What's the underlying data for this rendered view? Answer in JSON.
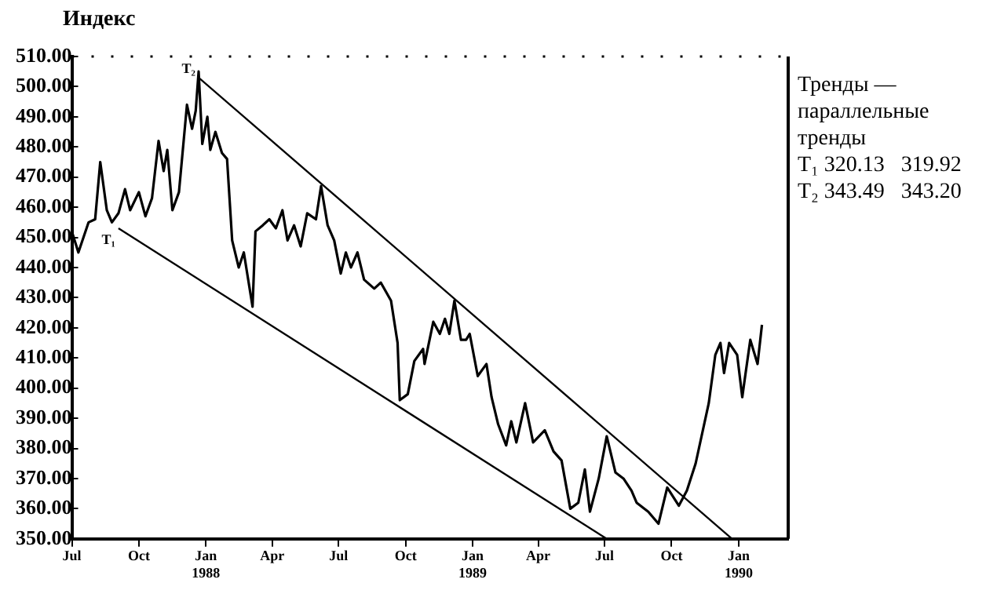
{
  "chart_data": {
    "type": "line",
    "ylabel": "Индекс",
    "xlim": [
      "1987-07-01",
      "1990-03-10"
    ],
    "xticks": [
      {
        "value": "1987-07-01",
        "label": "Jul"
      },
      {
        "value": "1987-10-01",
        "label": "Oct"
      },
      {
        "value": "1988-01-01",
        "label": "Jan\n1988"
      },
      {
        "value": "1988-04-01",
        "label": "Apr"
      },
      {
        "value": "1988-07-01",
        "label": "Jul"
      },
      {
        "value": "1988-10-01",
        "label": "Oct"
      },
      {
        "value": "1989-01-01",
        "label": "Jan\n1989"
      },
      {
        "value": "1989-04-01",
        "label": "Apr"
      },
      {
        "value": "1989-07-01",
        "label": "Jul"
      },
      {
        "value": "1989-10-01",
        "label": "Oct"
      },
      {
        "value": "1990-01-01",
        "label": "Jan\n1990"
      }
    ],
    "ylim": [
      350,
      510
    ],
    "yticks": [
      {
        "value": 350,
        "label": "350.00"
      },
      {
        "value": 360,
        "label": "360.00"
      },
      {
        "value": 370,
        "label": "370.00"
      },
      {
        "value": 380,
        "label": "380.00"
      },
      {
        "value": 390,
        "label": "390.00"
      },
      {
        "value": 400,
        "label": "400.00"
      },
      {
        "value": 410,
        "label": "410.00"
      },
      {
        "value": 420,
        "label": "420.00"
      },
      {
        "value": 430,
        "label": "430.00"
      },
      {
        "value": 440,
        "label": "440.00"
      },
      {
        "value": 450,
        "label": "450.00"
      },
      {
        "value": 460,
        "label": "460.00"
      },
      {
        "value": 470,
        "label": "470.00"
      },
      {
        "value": 480,
        "label": "480.00"
      },
      {
        "value": 490,
        "label": "490.00"
      },
      {
        "value": 500,
        "label": "500.00"
      },
      {
        "value": 510,
        "label": "510.00"
      }
    ],
    "grid": false,
    "legend": false,
    "marker": "none",
    "line_style": "solid",
    "series": [
      {
        "color": "#000000",
        "x": [
          "1987-07-01",
          "1987-07-10",
          "1987-07-24",
          "1987-08-02",
          "1987-08-09",
          "1987-08-18",
          "1987-08-25",
          "1987-09-03",
          "1987-09-12",
          "1987-09-19",
          "1987-10-01",
          "1987-10-10",
          "1987-10-19",
          "1987-10-28",
          "1987-11-04",
          "1987-11-09",
          "1987-11-16",
          "1987-11-25",
          "1987-12-06",
          "1987-12-13",
          "1987-12-18",
          "1987-12-22",
          "1987-12-27",
          "1988-01-03",
          "1988-01-07",
          "1988-01-14",
          "1988-01-23",
          "1988-01-30",
          "1988-02-06",
          "1988-02-15",
          "1988-02-22",
          "1988-03-05",
          "1988-03-09",
          "1988-03-19",
          "1988-03-28",
          "1988-04-06",
          "1988-04-15",
          "1988-04-22",
          "1988-05-01",
          "1988-05-10",
          "1988-05-19",
          "1988-05-31",
          "1988-06-07",
          "1988-06-16",
          "1988-06-25",
          "1988-07-04",
          "1988-07-11",
          "1988-07-18",
          "1988-07-27",
          "1988-08-05",
          "1988-08-19",
          "1988-08-28",
          "1988-09-11",
          "1988-09-20",
          "1988-09-23",
          "1988-10-04",
          "1988-10-13",
          "1988-10-25",
          "1988-10-27",
          "1988-11-08",
          "1988-11-17",
          "1988-11-24",
          "1988-11-30",
          "1988-12-07",
          "1988-12-16",
          "1988-12-23",
          "1988-12-28",
          "1989-01-08",
          "1989-01-20",
          "1989-01-27",
          "1989-02-05",
          "1989-02-16",
          "1989-02-23",
          "1989-03-02",
          "1989-03-14",
          "1989-03-25",
          "1989-04-10",
          "1989-04-22",
          "1989-05-03",
          "1989-05-15",
          "1989-05-26",
          "1989-06-04",
          "1989-06-11",
          "1989-06-23",
          "1989-07-04",
          "1989-07-16",
          "1989-07-27",
          "1989-08-07",
          "1989-08-14",
          "1989-08-30",
          "1989-09-13",
          "1989-09-25",
          "1989-10-11",
          "1989-10-22",
          "1989-11-03",
          "1989-11-21",
          "1989-11-30",
          "1989-12-07",
          "1989-12-12",
          "1989-12-19",
          "1989-12-30",
          "1990-01-06",
          "1990-01-10",
          "1990-01-17",
          "1990-01-27",
          "1990-02-02"
        ],
        "values": [
          452,
          445,
          455,
          456,
          475,
          459,
          455,
          458,
          466,
          459,
          465,
          457,
          463,
          482,
          472,
          479,
          459,
          465,
          494,
          486,
          492,
          505,
          481,
          490,
          479,
          485,
          478,
          476,
          449,
          440,
          445,
          427,
          452,
          454,
          456,
          453,
          459,
          449,
          454,
          447,
          458,
          456,
          467,
          454,
          449,
          438,
          445,
          440,
          445,
          436,
          433,
          435,
          429,
          415,
          396,
          398,
          409,
          413,
          408,
          422,
          418,
          423,
          418,
          429,
          416,
          416,
          418,
          404,
          408,
          397,
          388,
          381,
          389,
          382,
          395,
          382,
          386,
          379,
          376,
          360,
          362,
          373,
          359,
          370,
          384,
          372,
          370,
          366,
          362,
          359,
          355,
          367,
          361,
          366,
          375,
          395,
          411,
          415,
          405,
          415,
          411,
          397,
          404,
          416,
          408,
          421
        ]
      },
      {
        "type": "line",
        "color": "#000000",
        "x": [
          "1987-12-22",
          "1989-12-23"
        ],
        "values": [
          503,
          350
        ]
      },
      {
        "type": "line",
        "color": "#000000",
        "x": [
          "1987-09-03",
          "1989-07-04"
        ],
        "values": [
          453,
          350
        ]
      }
    ],
    "annotations": [
      {
        "text": "T₂",
        "x": "1987-12-22",
        "y": 503
      },
      {
        "text": "T₁",
        "x": "1987-09-03",
        "y": 453
      },
      "Тренды — параллельные тренды",
      "T₁ 320.13   319.92",
      "T₂ 343.49   343.20"
    ]
  }
}
